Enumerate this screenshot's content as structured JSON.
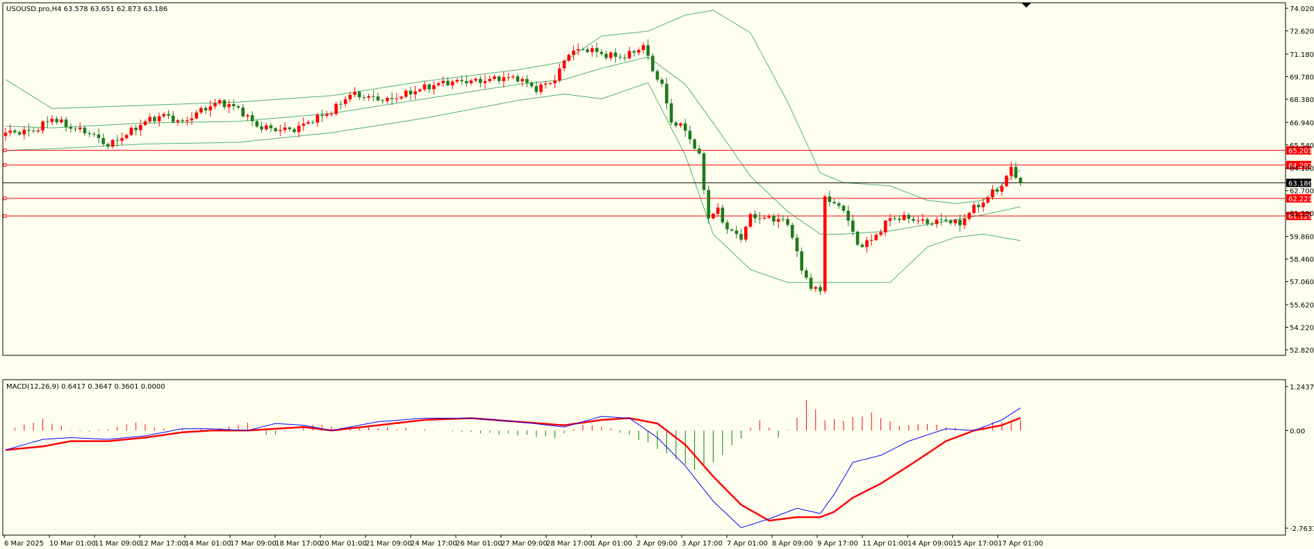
{
  "header": {
    "price_label": "USOUSD.pro,H4  63.578 63.651 62.873 63.186",
    "macd_label": "MACD(12,26,9) 0.6417 0.3647 0.3601 0.0000"
  },
  "colors": {
    "background": "#fffff0",
    "bull_candle": "#ff0000",
    "bear_candle": "#1f7a1f",
    "bands": "#4caf73",
    "hlines": "#ff0000",
    "current_price_line": "#000000",
    "macd_line": "#0000ff",
    "signal_line": "#ff0000",
    "hist_positive": "#ff0000",
    "hist_negative": "#008000"
  },
  "chart_data": [
    {
      "type": "candlestick",
      "symbol": "USOUSD.pro",
      "timeframe": "H4",
      "ylim": [
        52.82,
        74.02
      ],
      "y_ticks": [
        "74.020",
        "72.620",
        "71.180",
        "69.780",
        "68.380",
        "66.940",
        "65.540",
        "64.100",
        "62.700",
        "61.300",
        "59.860",
        "58.460",
        "57.060",
        "55.620",
        "54.220",
        "52.820"
      ],
      "x_ticks": [
        "6 Mar 2025",
        "10 Mar 01:00",
        "11 Mar 09:00",
        "12 Mar 17:00",
        "14 Mar 01:00",
        "17 Mar 09:00",
        "18 Mar 17:00",
        "20 Mar 01:00",
        "21 Mar 09:00",
        "24 Mar 17:00",
        "26 Mar 01:00",
        "27 Mar 09:00",
        "28 Mar 17:00",
        "1 Apr 01:00",
        "2 Apr 09:00",
        "3 Apr 17:00",
        "7 Apr 01:00",
        "8 Apr 09:00",
        "9 Apr 17:00",
        "11 Apr 01:00",
        "14 Apr 09:00",
        "15 Apr 17:00",
        "17 Apr 01:00"
      ],
      "horizontal_levels": [
        {
          "value": 65.201,
          "label": "65.201"
        },
        {
          "value": 64.292,
          "label": "64.292"
        },
        {
          "value": 62.221,
          "label": "62.221"
        },
        {
          "value": 61.129,
          "label": "61.129"
        }
      ],
      "current_price": {
        "value": 63.186,
        "label": "63.186"
      },
      "close_path": [
        [
          0,
          66.3
        ],
        [
          6,
          66.4
        ],
        [
          10,
          67.2
        ],
        [
          14,
          66.6
        ],
        [
          18,
          66.3
        ],
        [
          22,
          65.5
        ],
        [
          26,
          66.2
        ],
        [
          30,
          67.0
        ],
        [
          34,
          67.4
        ],
        [
          38,
          66.9
        ],
        [
          42,
          67.7
        ],
        [
          46,
          68.2
        ],
        [
          50,
          67.8
        ],
        [
          54,
          66.7
        ],
        [
          58,
          66.5
        ],
        [
          62,
          66.5
        ],
        [
          66,
          67.1
        ],
        [
          70,
          67.6
        ],
        [
          74,
          68.7
        ],
        [
          78,
          68.5
        ],
        [
          82,
          68.3
        ],
        [
          86,
          68.7
        ],
        [
          90,
          69.1
        ],
        [
          94,
          69.4
        ],
        [
          98,
          69.5
        ],
        [
          102,
          69.5
        ],
        [
          106,
          69.7
        ],
        [
          110,
          69.7
        ],
        [
          114,
          69.0
        ],
        [
          118,
          69.6
        ],
        [
          121,
          71.3
        ],
        [
          125,
          71.5
        ],
        [
          129,
          71.1
        ],
        [
          133,
          71.0
        ],
        [
          137,
          71.7
        ],
        [
          139,
          70.2
        ],
        [
          141,
          69.2
        ],
        [
          143,
          67.0
        ],
        [
          146,
          66.5
        ],
        [
          149,
          64.8
        ],
        [
          151,
          61.0
        ],
        [
          153,
          61.5
        ],
        [
          155,
          60.3
        ],
        [
          158,
          59.8
        ],
        [
          160,
          61.1
        ],
        [
          163,
          61.0
        ],
        [
          167,
          60.9
        ],
        [
          169,
          60.0
        ],
        [
          171,
          57.7
        ],
        [
          173,
          56.8
        ],
        [
          175,
          56.4
        ],
        [
          176,
          62.4
        ],
        [
          178,
          61.8
        ],
        [
          180,
          61.6
        ],
        [
          183,
          59.3
        ],
        [
          186,
          59.6
        ],
        [
          190,
          61.0
        ],
        [
          194,
          61.0
        ],
        [
          198,
          60.7
        ],
        [
          202,
          60.9
        ],
        [
          205,
          60.6
        ],
        [
          207,
          61.4
        ],
        [
          210,
          62.0
        ],
        [
          212,
          62.6
        ],
        [
          214,
          63.0
        ],
        [
          216,
          64.1
        ],
        [
          218,
          63.186
        ]
      ],
      "bands": {
        "upper": [
          [
            0,
            69.6
          ],
          [
            10,
            67.8
          ],
          [
            30,
            68.0
          ],
          [
            50,
            68.2
          ],
          [
            70,
            68.6
          ],
          [
            90,
            69.5
          ],
          [
            110,
            70.2
          ],
          [
            120,
            70.7
          ],
          [
            128,
            72.3
          ],
          [
            138,
            72.6
          ],
          [
            146,
            73.6
          ],
          [
            152,
            73.9
          ],
          [
            160,
            72.5
          ],
          [
            168,
            68.2
          ],
          [
            175,
            63.8
          ],
          [
            180,
            63.2
          ],
          [
            190,
            63.0
          ],
          [
            198,
            62.1
          ],
          [
            204,
            61.9
          ],
          [
            210,
            62.1
          ],
          [
            218,
            64.0
          ]
        ],
        "middle": [
          [
            0,
            66.7
          ],
          [
            10,
            66.6
          ],
          [
            30,
            66.9
          ],
          [
            50,
            67.0
          ],
          [
            70,
            67.5
          ],
          [
            90,
            68.4
          ],
          [
            110,
            69.3
          ],
          [
            120,
            69.6
          ],
          [
            128,
            70.3
          ],
          [
            138,
            71.0
          ],
          [
            146,
            69.3
          ],
          [
            152,
            66.9
          ],
          [
            160,
            63.6
          ],
          [
            168,
            61.4
          ],
          [
            175,
            60.0
          ],
          [
            180,
            60.0
          ],
          [
            190,
            60.2
          ],
          [
            198,
            60.6
          ],
          [
            204,
            60.9
          ],
          [
            210,
            61.2
          ],
          [
            218,
            61.7
          ]
        ],
        "lower": [
          [
            0,
            65.2
          ],
          [
            10,
            65.3
          ],
          [
            30,
            65.6
          ],
          [
            50,
            65.7
          ],
          [
            70,
            66.3
          ],
          [
            90,
            67.2
          ],
          [
            110,
            68.3
          ],
          [
            120,
            68.7
          ],
          [
            128,
            68.4
          ],
          [
            138,
            69.4
          ],
          [
            146,
            64.9
          ],
          [
            152,
            60.0
          ],
          [
            160,
            57.8
          ],
          [
            168,
            57.0
          ],
          [
            175,
            57.0
          ],
          [
            180,
            57.0
          ],
          [
            190,
            57.0
          ],
          [
            198,
            59.2
          ],
          [
            204,
            59.8
          ],
          [
            210,
            60.0
          ],
          [
            218,
            59.6
          ]
        ]
      }
    },
    {
      "type": "macd",
      "params": "12,26,9",
      "ylim": [
        -2.7631,
        1.2437
      ],
      "y_ticks": [
        "1.2437",
        "0.00",
        "-2.7631"
      ],
      "macd_line": [
        [
          0,
          -0.55
        ],
        [
          8,
          -0.25
        ],
        [
          14,
          -0.2
        ],
        [
          22,
          -0.25
        ],
        [
          30,
          -0.15
        ],
        [
          38,
          0.05
        ],
        [
          44,
          0.05
        ],
        [
          52,
          0.0
        ],
        [
          58,
          0.2
        ],
        [
          64,
          0.15
        ],
        [
          70,
          0.0
        ],
        [
          80,
          0.25
        ],
        [
          90,
          0.35
        ],
        [
          100,
          0.35
        ],
        [
          110,
          0.25
        ],
        [
          120,
          0.1
        ],
        [
          128,
          0.4
        ],
        [
          134,
          0.35
        ],
        [
          140,
          -0.2
        ],
        [
          146,
          -1.0
        ],
        [
          152,
          -2.0
        ],
        [
          158,
          -2.75
        ],
        [
          164,
          -2.5
        ],
        [
          170,
          -2.2
        ],
        [
          175,
          -2.35
        ],
        [
          178,
          -1.8
        ],
        [
          182,
          -0.9
        ],
        [
          188,
          -0.7
        ],
        [
          194,
          -0.3
        ],
        [
          202,
          0.05
        ],
        [
          208,
          0.0
        ],
        [
          214,
          0.3
        ],
        [
          218,
          0.64
        ]
      ],
      "signal_line": [
        [
          0,
          -0.55
        ],
        [
          8,
          -0.45
        ],
        [
          14,
          -0.3
        ],
        [
          22,
          -0.3
        ],
        [
          30,
          -0.2
        ],
        [
          38,
          -0.05
        ],
        [
          44,
          0.0
        ],
        [
          52,
          0.0
        ],
        [
          58,
          0.05
        ],
        [
          64,
          0.1
        ],
        [
          70,
          0.0
        ],
        [
          80,
          0.15
        ],
        [
          90,
          0.3
        ],
        [
          100,
          0.35
        ],
        [
          110,
          0.25
        ],
        [
          120,
          0.15
        ],
        [
          128,
          0.3
        ],
        [
          134,
          0.35
        ],
        [
          140,
          0.2
        ],
        [
          146,
          -0.4
        ],
        [
          152,
          -1.3
        ],
        [
          158,
          -2.1
        ],
        [
          164,
          -2.55
        ],
        [
          170,
          -2.45
        ],
        [
          175,
          -2.45
        ],
        [
          178,
          -2.3
        ],
        [
          182,
          -1.9
        ],
        [
          188,
          -1.5
        ],
        [
          194,
          -1.0
        ],
        [
          202,
          -0.3
        ],
        [
          208,
          0.0
        ],
        [
          214,
          0.15
        ],
        [
          218,
          0.36
        ]
      ],
      "hist_path": [
        [
          0,
          0.0
        ],
        [
          4,
          0.15
        ],
        [
          8,
          0.3
        ],
        [
          12,
          0.1
        ],
        [
          16,
          -0.05
        ],
        [
          22,
          0.05
        ],
        [
          28,
          0.25
        ],
        [
          34,
          0.05
        ],
        [
          40,
          0.02
        ],
        [
          46,
          0.05
        ],
        [
          52,
          0.2
        ],
        [
          56,
          -0.15
        ],
        [
          60,
          -0.05
        ],
        [
          66,
          0.2
        ],
        [
          72,
          0.1
        ],
        [
          78,
          0.1
        ],
        [
          84,
          0.05
        ],
        [
          90,
          0.0
        ],
        [
          100,
          -0.05
        ],
        [
          110,
          -0.1
        ],
        [
          118,
          -0.2
        ],
        [
          124,
          0.15
        ],
        [
          128,
          0.1
        ],
        [
          132,
          -0.05
        ],
        [
          138,
          -0.35
        ],
        [
          144,
          -0.8
        ],
        [
          148,
          -1.1
        ],
        [
          152,
          -0.9
        ],
        [
          158,
          -0.2
        ],
        [
          162,
          0.3
        ],
        [
          166,
          -0.2
        ],
        [
          169,
          0.1
        ],
        [
          172,
          0.85
        ],
        [
          176,
          0.3
        ],
        [
          180,
          0.3
        ],
        [
          186,
          0.5
        ],
        [
          192,
          0.15
        ],
        [
          198,
          0.2
        ],
        [
          204,
          0.05
        ],
        [
          208,
          0.0
        ],
        [
          212,
          0.2
        ],
        [
          218,
          0.3
        ]
      ]
    }
  ]
}
